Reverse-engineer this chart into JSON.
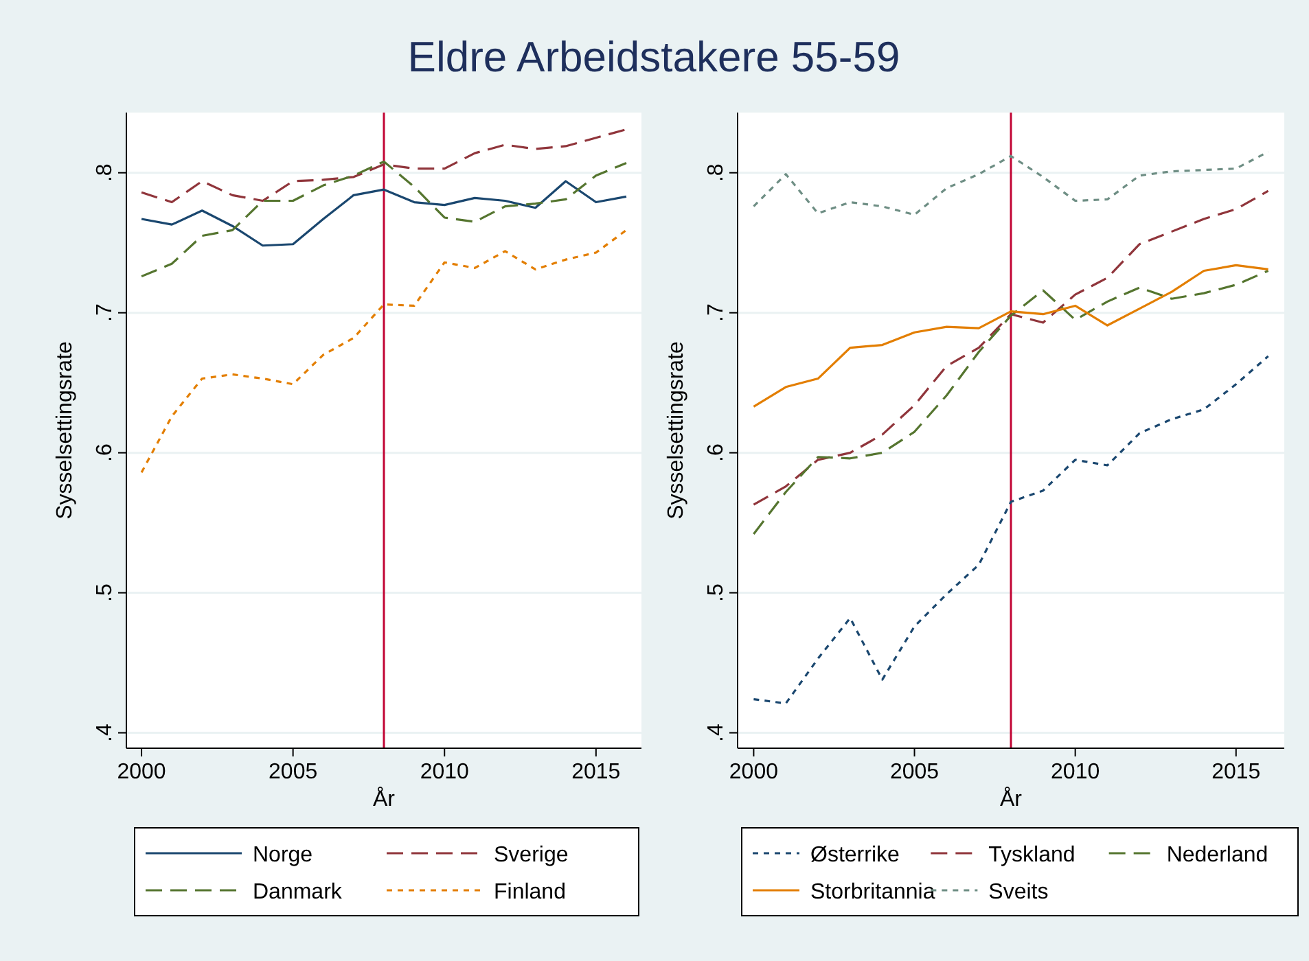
{
  "chart_data": [
    {
      "type": "line",
      "title": "Eldre Arbeidstakere 55-59",
      "xlabel": "År",
      "ylabel": "Sysselsettingsrate",
      "x": [
        2000,
        2001,
        2002,
        2003,
        2004,
        2005,
        2006,
        2007,
        2008,
        2009,
        2010,
        2011,
        2012,
        2013,
        2014,
        2015,
        2016
      ],
      "xlim": [
        1999.5,
        2016.5
      ],
      "xticks": [
        2000,
        2005,
        2010,
        2015
      ],
      "ylim": [
        0.389,
        0.843
      ],
      "yticks": [
        {
          "value": 0.4,
          "label": ".4"
        },
        {
          "value": 0.5,
          "label": ".5"
        },
        {
          "value": 0.6,
          "label": ".6"
        },
        {
          "value": 0.7,
          "label": ".7"
        },
        {
          "value": 0.8,
          "label": ".8"
        }
      ],
      "grid": "y",
      "legend": "bottom",
      "ref_lines": [
        {
          "axis": "x",
          "value": 2008,
          "color": "#c10534"
        }
      ],
      "series": [
        {
          "name": "Norge",
          "color": "#1a476f",
          "line_style": "solid",
          "values": [
            0.767,
            0.763,
            0.773,
            0.762,
            0.748,
            0.749,
            0.767,
            0.784,
            0.788,
            0.779,
            0.777,
            0.782,
            0.78,
            0.775,
            0.794,
            0.779,
            0.783
          ]
        },
        {
          "name": "Sverige",
          "color": "#90353b",
          "line_style": "dashed",
          "values": [
            0.786,
            0.779,
            0.794,
            0.784,
            0.78,
            0.794,
            0.795,
            0.797,
            0.806,
            0.803,
            0.803,
            0.814,
            0.82,
            0.817,
            0.819,
            0.825,
            0.831
          ]
        },
        {
          "name": "Danmark",
          "color": "#55752f",
          "line_style": "dashed",
          "values": [
            0.726,
            0.735,
            0.755,
            0.759,
            0.78,
            0.78,
            0.791,
            0.798,
            0.808,
            0.79,
            0.768,
            0.765,
            0.776,
            0.778,
            0.781,
            0.798,
            0.807
          ]
        },
        {
          "name": "Finland",
          "color": "#e37e00",
          "line_style": "dotted",
          "values": [
            0.586,
            0.626,
            0.653,
            0.656,
            0.653,
            0.649,
            0.67,
            0.682,
            0.706,
            0.705,
            0.736,
            0.732,
            0.744,
            0.731,
            0.738,
            0.743,
            0.759
          ]
        }
      ]
    },
    {
      "type": "line",
      "xlabel": "År",
      "ylabel": "Sysselsettingsrate",
      "x": [
        2000,
        2001,
        2002,
        2003,
        2004,
        2005,
        2006,
        2007,
        2008,
        2009,
        2010,
        2011,
        2012,
        2013,
        2014,
        2015,
        2016
      ],
      "xlim": [
        1999.5,
        2016.5
      ],
      "xticks": [
        2000,
        2005,
        2010,
        2015
      ],
      "ylim": [
        0.389,
        0.843
      ],
      "yticks": [
        {
          "value": 0.4,
          "label": ".4"
        },
        {
          "value": 0.5,
          "label": ".5"
        },
        {
          "value": 0.6,
          "label": ".6"
        },
        {
          "value": 0.7,
          "label": ".7"
        },
        {
          "value": 0.8,
          "label": ".8"
        }
      ],
      "grid": "y",
      "legend": "bottom",
      "ref_lines": [
        {
          "axis": "x",
          "value": 2008,
          "color": "#c10534"
        }
      ],
      "series": [
        {
          "name": "Østerrike",
          "color": "#1a476f",
          "line_style": "dotted",
          "values": [
            0.424,
            0.421,
            0.453,
            0.482,
            0.438,
            0.476,
            0.499,
            0.52,
            0.565,
            0.573,
            0.595,
            0.591,
            0.614,
            0.624,
            0.631,
            0.649,
            0.669
          ]
        },
        {
          "name": "Tyskland",
          "color": "#90353b",
          "line_style": "dashed",
          "values": [
            0.563,
            0.576,
            0.595,
            0.6,
            0.613,
            0.634,
            0.662,
            0.675,
            0.699,
            0.693,
            0.713,
            0.725,
            0.749,
            0.758,
            0.767,
            0.774,
            0.787
          ]
        },
        {
          "name": "Nederland",
          "color": "#55752f",
          "line_style": "dashed",
          "values": [
            0.542,
            0.572,
            0.597,
            0.596,
            0.6,
            0.615,
            0.641,
            0.672,
            0.698,
            0.716,
            0.695,
            0.708,
            0.718,
            0.71,
            0.714,
            0.72,
            0.73
          ]
        },
        {
          "name": "Storbritannia",
          "color": "#e37e00",
          "line_style": "solid",
          "values": [
            0.633,
            0.647,
            0.653,
            0.675,
            0.677,
            0.686,
            0.69,
            0.689,
            0.701,
            0.699,
            0.705,
            0.691,
            0.703,
            0.715,
            0.73,
            0.734,
            0.731
          ]
        },
        {
          "name": "Sveits",
          "color": "#6e8e84",
          "line_style": "dotted",
          "values": [
            0.776,
            0.799,
            0.771,
            0.779,
            0.776,
            0.77,
            0.789,
            0.799,
            0.812,
            0.797,
            0.78,
            0.781,
            0.798,
            0.801,
            0.802,
            0.803,
            0.815
          ]
        }
      ]
    }
  ]
}
